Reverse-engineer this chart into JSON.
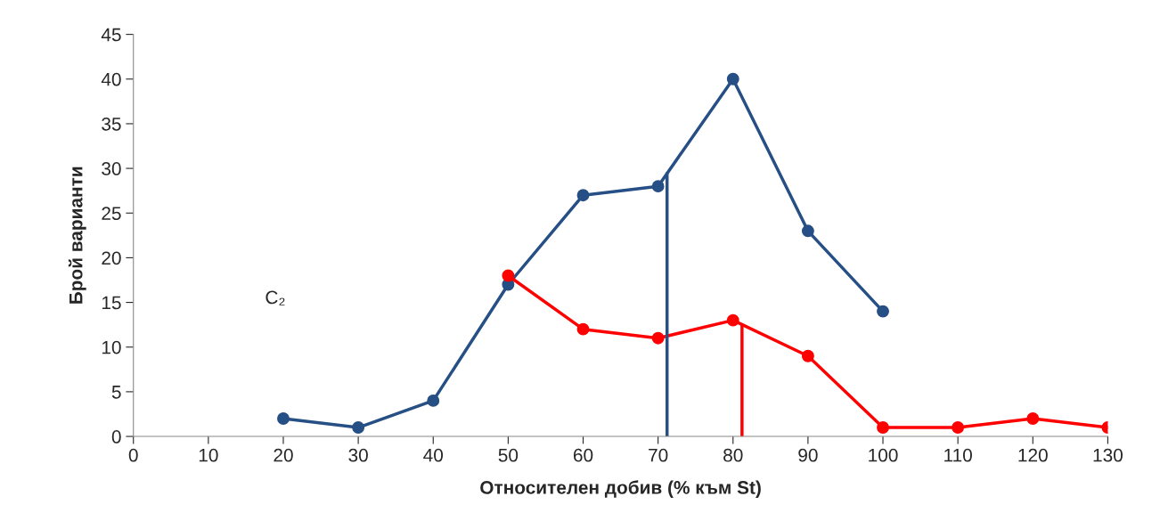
{
  "chart_data": {
    "type": "line",
    "xlabel": "Относителен добив (% към St)",
    "ylabel": "Брой варианти",
    "series": [
      {
        "color": "#264f85",
        "x": [
          20,
          30,
          40,
          50,
          60,
          70,
          80,
          90,
          100
        ],
        "values": [
          2,
          1,
          4,
          17,
          27,
          28,
          40,
          23,
          14
        ]
      },
      {
        "color": "#ff0000",
        "x": [
          50,
          60,
          70,
          80,
          90,
          100,
          110,
          120,
          130
        ],
        "values": [
          18,
          12,
          11,
          13,
          9,
          1,
          1,
          2,
          1
        ]
      }
    ],
    "ref_lines": [
      {
        "axis": "x",
        "value": 71.2,
        "color": "#264f85"
      },
      {
        "axis": "x",
        "value": 81.2,
        "color": "#ff0000"
      }
    ],
    "annotations": [
      "C₂"
    ],
    "xlim": [
      0,
      130
    ],
    "xticks": [
      0,
      10,
      20,
      30,
      40,
      50,
      60,
      70,
      80,
      90,
      100,
      110,
      120,
      130
    ],
    "ylim": [
      0,
      45
    ],
    "yticks": [
      0,
      5,
      10,
      15,
      20,
      25,
      30,
      35,
      40,
      45
    ],
    "marker": "circle",
    "line_style": "solid",
    "grid": false,
    "legend": false
  }
}
